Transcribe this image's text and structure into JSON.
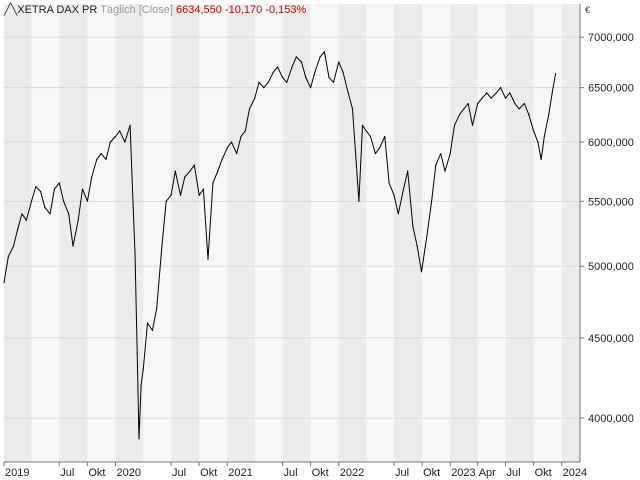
{
  "legend": {
    "icon": "line-chart-icon",
    "instrument": "XETRA DAX PR",
    "interval": "Täglich [Close]",
    "last": "6634,550",
    "change": "-10,170",
    "change_pct": "-0,153%"
  },
  "currency": "€",
  "colors": {
    "line": "#000000",
    "negative": "#cc0000",
    "band_shaded": "#ebebeb",
    "band_plain": "#f7f7f7",
    "grid": "#d9d9d9",
    "axis": "#777777"
  },
  "chart_data": {
    "type": "line",
    "title": "",
    "xlabel": "",
    "ylabel": "",
    "yscale": "log",
    "ylim": [
      3750,
      7350
    ],
    "grid": true,
    "y_ticks": [
      {
        "value": 4000,
        "label": "4000,000"
      },
      {
        "value": 4500,
        "label": "4500,000"
      },
      {
        "value": 5000,
        "label": "5000,000"
      },
      {
        "value": 5500,
        "label": "5500,000"
      },
      {
        "value": 6000,
        "label": "6000,000"
      },
      {
        "value": 6500,
        "label": "6500,000"
      },
      {
        "value": 7000,
        "label": "7000,000"
      }
    ],
    "x_ticks": [
      {
        "date": "2019-01-01",
        "label": "2019"
      },
      {
        "date": "2019-07-01",
        "label": "Jul"
      },
      {
        "date": "2019-10-01",
        "label": "Okt"
      },
      {
        "date": "2020-01-01",
        "label": "2020"
      },
      {
        "date": "2020-07-01",
        "label": "Jul"
      },
      {
        "date": "2020-10-01",
        "label": "Okt"
      },
      {
        "date": "2021-01-01",
        "label": "2021"
      },
      {
        "date": "2021-07-01",
        "label": "Jul"
      },
      {
        "date": "2021-10-01",
        "label": "Okt"
      },
      {
        "date": "2022-01-01",
        "label": "2022"
      },
      {
        "date": "2022-07-01",
        "label": "Jul"
      },
      {
        "date": "2022-10-01",
        "label": "Okt"
      },
      {
        "date": "2023-01-01",
        "label": "2023"
      },
      {
        "date": "2023-04-01",
        "label": "Apr"
      },
      {
        "date": "2023-07-01",
        "label": "Jul"
      },
      {
        "date": "2023-10-01",
        "label": "Okt"
      },
      {
        "date": "2024-01-01",
        "label": "2024"
      }
    ],
    "series": [
      {
        "points": [
          [
            "2019-01-01",
            4880
          ],
          [
            "2019-01-15",
            5070
          ],
          [
            "2019-02-01",
            5150
          ],
          [
            "2019-02-15",
            5280
          ],
          [
            "2019-03-01",
            5400
          ],
          [
            "2019-03-15",
            5350
          ],
          [
            "2019-04-01",
            5500
          ],
          [
            "2019-04-15",
            5620
          ],
          [
            "2019-05-01",
            5580
          ],
          [
            "2019-05-15",
            5450
          ],
          [
            "2019-06-01",
            5400
          ],
          [
            "2019-06-15",
            5600
          ],
          [
            "2019-07-01",
            5650
          ],
          [
            "2019-07-15",
            5500
          ],
          [
            "2019-08-01",
            5400
          ],
          [
            "2019-08-15",
            5150
          ],
          [
            "2019-09-01",
            5350
          ],
          [
            "2019-09-15",
            5600
          ],
          [
            "2019-10-01",
            5500
          ],
          [
            "2019-10-15",
            5700
          ],
          [
            "2019-11-01",
            5850
          ],
          [
            "2019-11-15",
            5900
          ],
          [
            "2019-12-01",
            5850
          ],
          [
            "2019-12-15",
            6000
          ],
          [
            "2020-01-01",
            6050
          ],
          [
            "2020-01-15",
            6100
          ],
          [
            "2020-02-01",
            6000
          ],
          [
            "2020-02-18",
            6150
          ],
          [
            "2020-02-28",
            5450
          ],
          [
            "2020-03-05",
            5100
          ],
          [
            "2020-03-12",
            4400
          ],
          [
            "2020-03-18",
            3880
          ],
          [
            "2020-03-25",
            4200
          ],
          [
            "2020-04-01",
            4300
          ],
          [
            "2020-04-15",
            4600
          ],
          [
            "2020-05-01",
            4550
          ],
          [
            "2020-05-15",
            4700
          ],
          [
            "2020-06-01",
            5150
          ],
          [
            "2020-06-15",
            5500
          ],
          [
            "2020-07-01",
            5550
          ],
          [
            "2020-07-15",
            5750
          ],
          [
            "2020-08-01",
            5550
          ],
          [
            "2020-08-15",
            5700
          ],
          [
            "2020-09-01",
            5750
          ],
          [
            "2020-09-15",
            5800
          ],
          [
            "2020-10-01",
            5550
          ],
          [
            "2020-10-15",
            5600
          ],
          [
            "2020-10-30",
            5050
          ],
          [
            "2020-11-15",
            5650
          ],
          [
            "2020-12-01",
            5750
          ],
          [
            "2020-12-15",
            5850
          ],
          [
            "2021-01-01",
            5950
          ],
          [
            "2021-01-15",
            6000
          ],
          [
            "2021-02-01",
            5900
          ],
          [
            "2021-02-15",
            6050
          ],
          [
            "2021-03-01",
            6100
          ],
          [
            "2021-03-15",
            6300
          ],
          [
            "2021-04-01",
            6400
          ],
          [
            "2021-04-15",
            6550
          ],
          [
            "2021-05-01",
            6500
          ],
          [
            "2021-05-15",
            6550
          ],
          [
            "2021-06-01",
            6650
          ],
          [
            "2021-06-15",
            6700
          ],
          [
            "2021-07-01",
            6600
          ],
          [
            "2021-07-15",
            6550
          ],
          [
            "2021-08-01",
            6700
          ],
          [
            "2021-08-15",
            6800
          ],
          [
            "2021-09-01",
            6750
          ],
          [
            "2021-09-15",
            6600
          ],
          [
            "2021-10-01",
            6500
          ],
          [
            "2021-10-15",
            6650
          ],
          [
            "2021-11-01",
            6800
          ],
          [
            "2021-11-15",
            6850
          ],
          [
            "2021-11-30",
            6600
          ],
          [
            "2021-12-15",
            6550
          ],
          [
            "2022-01-01",
            6750
          ],
          [
            "2022-01-15",
            6650
          ],
          [
            "2022-02-01",
            6450
          ],
          [
            "2022-02-15",
            6300
          ],
          [
            "2022-03-08",
            5500
          ],
          [
            "2022-03-20",
            6150
          ],
          [
            "2022-04-01",
            6100
          ],
          [
            "2022-04-15",
            6050
          ],
          [
            "2022-05-01",
            5900
          ],
          [
            "2022-05-15",
            5950
          ],
          [
            "2022-06-01",
            6050
          ],
          [
            "2022-06-15",
            5650
          ],
          [
            "2022-07-01",
            5550
          ],
          [
            "2022-07-15",
            5400
          ],
          [
            "2022-08-01",
            5600
          ],
          [
            "2022-08-15",
            5750
          ],
          [
            "2022-09-01",
            5300
          ],
          [
            "2022-09-15",
            5150
          ],
          [
            "2022-09-29",
            4960
          ],
          [
            "2022-10-15",
            5200
          ],
          [
            "2022-11-01",
            5500
          ],
          [
            "2022-11-15",
            5800
          ],
          [
            "2022-12-01",
            5900
          ],
          [
            "2022-12-15",
            5750
          ],
          [
            "2023-01-01",
            5900
          ],
          [
            "2023-01-15",
            6150
          ],
          [
            "2023-02-01",
            6250
          ],
          [
            "2023-02-15",
            6300
          ],
          [
            "2023-03-01",
            6350
          ],
          [
            "2023-03-15",
            6150
          ],
          [
            "2023-04-01",
            6350
          ],
          [
            "2023-04-15",
            6400
          ],
          [
            "2023-05-01",
            6450
          ],
          [
            "2023-05-15",
            6400
          ],
          [
            "2023-06-01",
            6450
          ],
          [
            "2023-06-15",
            6500
          ],
          [
            "2023-07-01",
            6400
          ],
          [
            "2023-07-15",
            6450
          ],
          [
            "2023-08-01",
            6350
          ],
          [
            "2023-08-15",
            6300
          ],
          [
            "2023-09-01",
            6350
          ],
          [
            "2023-09-15",
            6250
          ],
          [
            "2023-10-01",
            6100
          ],
          [
            "2023-10-15",
            6000
          ],
          [
            "2023-10-26",
            5850
          ],
          [
            "2023-11-05",
            6050
          ],
          [
            "2023-11-20",
            6250
          ],
          [
            "2023-12-01",
            6450
          ],
          [
            "2023-12-12",
            6634.55
          ]
        ]
      }
    ]
  }
}
